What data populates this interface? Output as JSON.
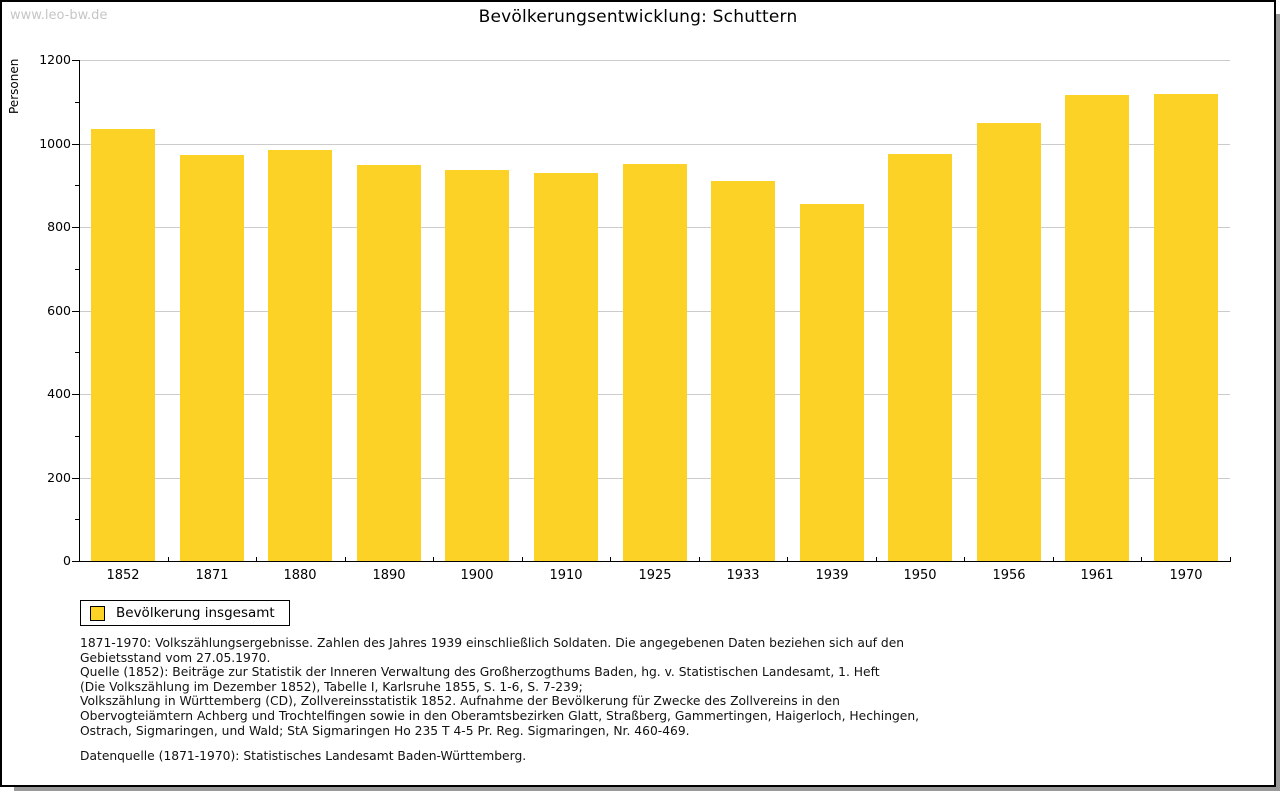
{
  "watermark": "www.leo-bw.de",
  "title": "Bevölkerungsentwicklung: Schuttern",
  "chart_data": {
    "type": "bar",
    "title": "Bevölkerungsentwicklung: Schuttern",
    "categories": [
      "1852",
      "1871",
      "1880",
      "1890",
      "1900",
      "1910",
      "1925",
      "1933",
      "1939",
      "1950",
      "1956",
      "1961",
      "1970"
    ],
    "series": [
      {
        "name": "Bevölkerung insgesamt",
        "values": [
          1035,
          972,
          985,
          948,
          936,
          929,
          950,
          910,
          855,
          976,
          1050,
          1116,
          1118
        ]
      }
    ],
    "xlabel": "",
    "ylabel": "Personen",
    "ylim": [
      0,
      1200
    ],
    "y_major_step": 200,
    "y_minor_step": 100,
    "grid": "horizontal-major-lines",
    "legend_position": "bottom-left",
    "bar_color": "#FDD226"
  },
  "legend": {
    "label": "Bevölkerung insgesamt",
    "swatch_color": "#FDD226"
  },
  "footer": {
    "lines": [
      "1871-1970: Volkszählungsergebnisse. Zahlen des Jahres 1939 einschließlich Soldaten. Die angegebenen Daten beziehen sich auf den",
      "Gebietsstand vom 27.05.1970.",
      "Quelle (1852): Beiträge zur Statistik der Inneren Verwaltung des Großherzogthums Baden, hg. v. Statistischen Landesamt, 1. Heft",
      "(Die Volkszählung im Dezember 1852), Tabelle I, Karlsruhe 1855, S. 1-6, S. 7-239;",
      "Volkszählung in Württemberg (CD), Zollvereinsstatistik 1852. Aufnahme der Bevölkerung für Zwecke des Zollvereins in den",
      "Obervogteiämtern Achberg und Trochtelfingen sowie in den Oberamtsbezirken Glatt, Straßberg, Gammertingen, Haigerloch, Hechingen,",
      "Ostrach, Sigmaringen, und Wald; StA Sigmaringen Ho 235 T 4-5 Pr. Reg. Sigmaringen, Nr. 460-469."
    ],
    "datasource": "Datenquelle (1871-1970): Statistisches Landesamt Baden-Württemberg."
  },
  "colors": {
    "bar": "#FDD226",
    "grid_line": "#CCCCCC",
    "axis": "#000000",
    "watermark_text": "#C6C6C6",
    "shadow": "#999999"
  }
}
